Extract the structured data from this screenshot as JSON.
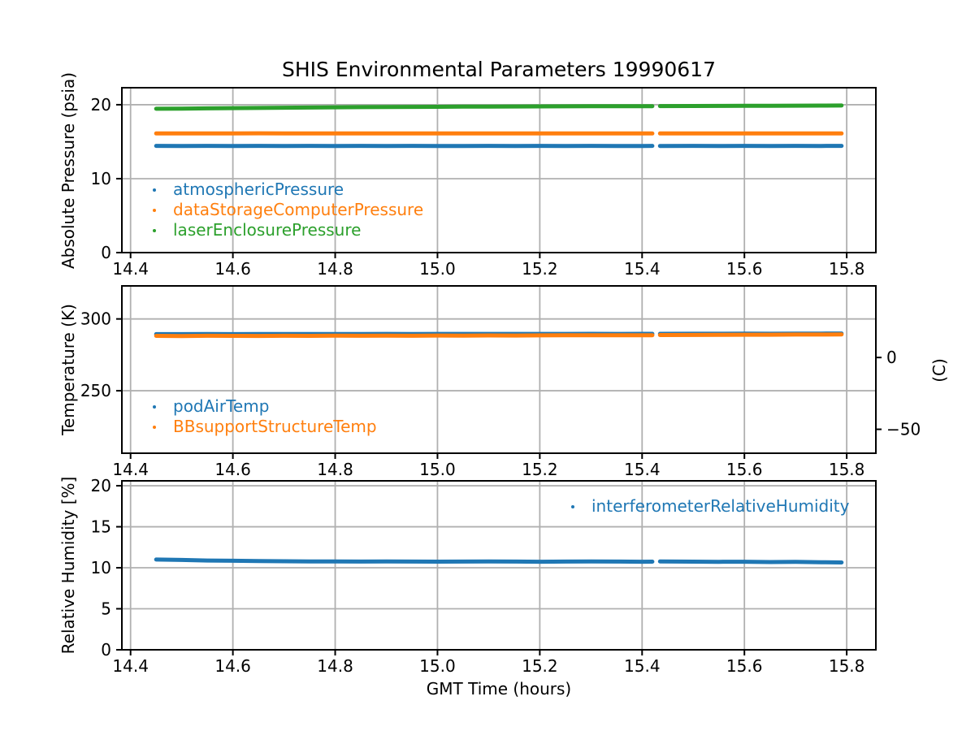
{
  "figure": {
    "title": "SHIS Environmental Parameters 19990617",
    "xlabel": "GMT Time (hours)",
    "background": "#ffffff",
    "grid_color": "#b0b0b0",
    "spine_color": "#000000",
    "text_color": "#000000"
  },
  "chart_data": [
    {
      "type": "scatter",
      "ylabel": "Absolute Pressure (psia)",
      "xlim": [
        14.383,
        15.857
      ],
      "ylim": [
        0,
        22.3
      ],
      "xticks": [
        14.4,
        14.6,
        14.8,
        15.0,
        15.2,
        15.4,
        15.6,
        15.8
      ],
      "xtick_labels": [
        "14.4",
        "14.6",
        "14.8",
        "15.0",
        "15.2",
        "15.4",
        "15.6",
        "15.8"
      ],
      "yticks": [
        0,
        10,
        20
      ],
      "ytick_labels": [
        "0",
        "10",
        "20"
      ],
      "grid": true,
      "legend_position": "lower-left",
      "series": [
        {
          "name": "atmosphericPressure",
          "color": "#1f77b4",
          "x": [
            14.45,
            14.5,
            14.55,
            14.6,
            14.65,
            14.7,
            14.75,
            14.8,
            14.85,
            14.9,
            14.95,
            15.0,
            15.05,
            15.1,
            15.15,
            15.2,
            15.25,
            15.3,
            15.35,
            15.4,
            15.42,
            null,
            15.435,
            15.5,
            15.55,
            15.6,
            15.65,
            15.7,
            15.75,
            15.79
          ],
          "y": [
            14.43,
            14.42,
            14.44,
            14.42,
            14.43,
            14.41,
            14.43,
            14.42,
            14.44,
            14.42,
            14.43,
            14.42,
            14.41,
            14.43,
            14.42,
            14.44,
            14.42,
            14.43,
            14.41,
            14.42,
            14.43,
            null,
            14.42,
            14.43,
            14.41,
            14.43,
            14.42,
            14.44,
            14.42,
            14.43
          ]
        },
        {
          "name": "dataStorageComputerPressure",
          "color": "#ff7f0e",
          "x": [
            14.45,
            14.5,
            14.55,
            14.6,
            14.65,
            14.7,
            14.75,
            14.8,
            14.85,
            14.9,
            14.95,
            15.0,
            15.05,
            15.1,
            15.15,
            15.2,
            15.25,
            15.3,
            15.35,
            15.4,
            15.42,
            null,
            15.435,
            15.5,
            15.55,
            15.6,
            15.65,
            15.7,
            15.75,
            15.79
          ],
          "y": [
            16.12,
            16.13,
            16.11,
            16.12,
            16.14,
            16.12,
            16.11,
            16.13,
            16.12,
            16.12,
            16.13,
            16.11,
            16.12,
            16.13,
            16.12,
            16.11,
            16.13,
            16.12,
            16.12,
            16.13,
            16.12,
            null,
            16.12,
            16.11,
            16.13,
            16.12,
            16.12,
            16.13,
            16.12,
            16.12
          ]
        },
        {
          "name": "laserEnclosurePressure",
          "color": "#2ca02c",
          "x": [
            14.45,
            14.5,
            14.55,
            14.6,
            14.65,
            14.7,
            14.75,
            14.8,
            14.85,
            14.9,
            14.95,
            15.0,
            15.05,
            15.1,
            15.15,
            15.2,
            15.25,
            15.3,
            15.35,
            15.4,
            15.42,
            null,
            15.435,
            15.5,
            15.55,
            15.6,
            15.65,
            15.7,
            15.75,
            15.79
          ],
          "y": [
            19.45,
            19.48,
            19.51,
            19.54,
            19.57,
            19.6,
            19.62,
            19.65,
            19.67,
            19.69,
            19.71,
            19.72,
            19.74,
            19.75,
            19.76,
            19.77,
            19.78,
            19.79,
            19.8,
            19.81,
            19.81,
            null,
            19.82,
            19.83,
            19.84,
            19.85,
            19.86,
            19.87,
            19.88,
            19.89
          ]
        }
      ]
    },
    {
      "type": "scatter",
      "ylabel": "Temperature (K)",
      "ylabel_right": "(C)",
      "xlim": [
        14.383,
        15.857
      ],
      "ylim": [
        206.5,
        323.0
      ],
      "xticks": [
        14.4,
        14.6,
        14.8,
        15.0,
        15.2,
        15.4,
        15.6,
        15.8
      ],
      "xtick_labels": [
        "14.4",
        "14.6",
        "14.8",
        "15.0",
        "15.2",
        "15.4",
        "15.6",
        "15.8"
      ],
      "yticks": [
        250,
        300
      ],
      "ytick_labels": [
        "250",
        "300"
      ],
      "yticks_right_celsius": [
        0,
        -50
      ],
      "ytick_right_labels": [
        "0",
        "−50"
      ],
      "right_axis_offset_kelvin": 273.15,
      "grid": true,
      "legend_position": "lower-left",
      "series": [
        {
          "name": "podAirTemp",
          "color": "#1f77b4",
          "x": [
            14.45,
            14.5,
            14.55,
            14.6,
            14.65,
            14.7,
            14.75,
            14.8,
            14.85,
            14.9,
            14.95,
            15.0,
            15.05,
            15.1,
            15.15,
            15.2,
            15.25,
            15.3,
            15.35,
            15.4,
            15.42,
            null,
            15.435,
            15.5,
            15.55,
            15.6,
            15.65,
            15.7,
            15.75,
            15.79
          ],
          "y": [
            289.4,
            289.4,
            289.45,
            289.4,
            289.45,
            289.5,
            289.45,
            289.5,
            289.5,
            289.55,
            289.5,
            289.55,
            289.55,
            289.6,
            289.55,
            289.6,
            289.6,
            289.65,
            289.6,
            289.65,
            289.65,
            null,
            289.65,
            289.7,
            289.7,
            289.75,
            289.7,
            289.8,
            289.8,
            289.85
          ]
        },
        {
          "name": "BBsupportStructureTemp",
          "color": "#ff7f0e",
          "x": [
            14.45,
            14.5,
            14.55,
            14.6,
            14.65,
            14.7,
            14.75,
            14.8,
            14.85,
            14.9,
            14.95,
            15.0,
            15.05,
            15.1,
            15.15,
            15.2,
            15.25,
            15.3,
            15.35,
            15.4,
            15.42,
            null,
            15.435,
            15.5,
            15.55,
            15.6,
            15.65,
            15.7,
            15.75,
            15.79
          ],
          "y": [
            288.2,
            288.1,
            288.25,
            288.2,
            288.15,
            288.3,
            288.2,
            288.35,
            288.3,
            288.4,
            288.3,
            288.45,
            288.4,
            288.5,
            288.45,
            288.55,
            288.6,
            288.65,
            288.6,
            288.7,
            288.7,
            null,
            288.8,
            288.85,
            288.9,
            289.0,
            289.0,
            289.1,
            289.15,
            289.2
          ]
        }
      ]
    },
    {
      "type": "scatter",
      "ylabel": "Relative Humidity [%]",
      "xlim": [
        14.383,
        15.857
      ],
      "ylim": [
        0,
        20.6
      ],
      "xticks": [
        14.4,
        14.6,
        14.8,
        15.0,
        15.2,
        15.4,
        15.6,
        15.8
      ],
      "xtick_labels": [
        "14.4",
        "14.6",
        "14.8",
        "15.0",
        "15.2",
        "15.4",
        "15.6",
        "15.8"
      ],
      "yticks": [
        0,
        5,
        10,
        15,
        20
      ],
      "ytick_labels": [
        "0",
        "5",
        "10",
        "15",
        "20"
      ],
      "grid": true,
      "legend_position": "upper-right",
      "series": [
        {
          "name": "interferometerRelativeHumidity",
          "color": "#1f77b4",
          "x": [
            14.45,
            14.5,
            14.55,
            14.6,
            14.65,
            14.7,
            14.75,
            14.8,
            14.85,
            14.9,
            14.95,
            15.0,
            15.05,
            15.1,
            15.15,
            15.2,
            15.25,
            15.3,
            15.35,
            15.4,
            15.42,
            null,
            15.435,
            15.5,
            15.55,
            15.6,
            15.65,
            15.7,
            15.75,
            15.79
          ],
          "y": [
            11.0,
            10.95,
            10.88,
            10.85,
            10.82,
            10.8,
            10.78,
            10.78,
            10.76,
            10.78,
            10.76,
            10.75,
            10.76,
            10.78,
            10.76,
            10.74,
            10.76,
            10.78,
            10.76,
            10.74,
            10.75,
            null,
            10.77,
            10.75,
            10.73,
            10.74,
            10.7,
            10.72,
            10.68,
            10.65
          ]
        }
      ]
    }
  ]
}
